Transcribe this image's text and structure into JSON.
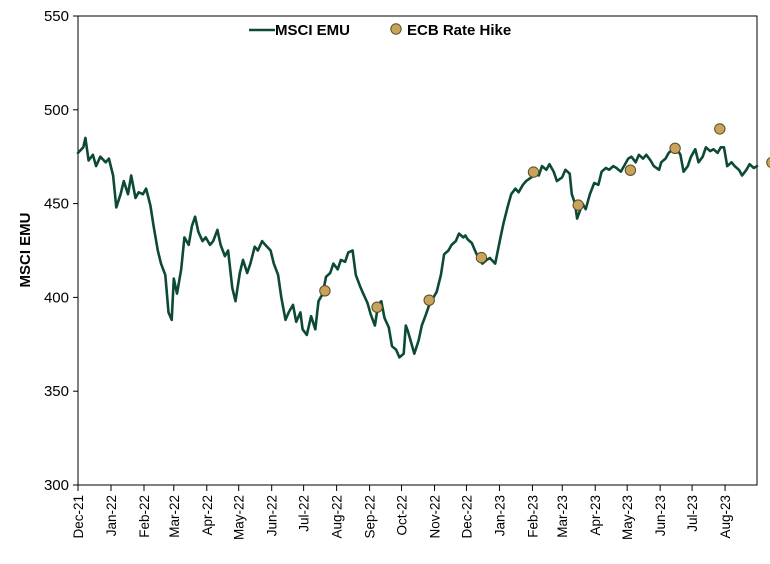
{
  "chart_data": {
    "type": "line",
    "ylabel": "MSCI EMU",
    "xlabel": "",
    "title": "",
    "ylim": [
      300,
      550
    ],
    "y_ticks": [
      "300",
      "350",
      "400",
      "450",
      "500",
      "550"
    ],
    "x_ticks": [
      "Dec-21",
      "Jan-22",
      "Feb-22",
      "Mar-22",
      "Apr-22",
      "May-22",
      "Jun-22",
      "Jul-22",
      "Aug-22",
      "Sep-22",
      "Oct-22",
      "Nov-22",
      "Dec-22",
      "Jan-23",
      "Feb-23",
      "Mar-23",
      "Apr-23",
      "May-23",
      "Jun-23",
      "Jul-23",
      "Aug-23"
    ],
    "x_range": [
      "2021-12-01",
      "2023-08-31"
    ],
    "legend_position": "top-center",
    "grid": false,
    "colors": {
      "series": "#0d4a35",
      "marker": "#c8a45a",
      "marker_edge": "#5a4a28"
    },
    "series": [
      {
        "name": "MSCI EMU",
        "points": [
          [
            "2021-12-01",
            477
          ],
          [
            "2021-12-06",
            480
          ],
          [
            "2021-12-08",
            485
          ],
          [
            "2021-12-11",
            473
          ],
          [
            "2021-12-15",
            476
          ],
          [
            "2021-12-18",
            470
          ],
          [
            "2021-12-22",
            475
          ],
          [
            "2021-12-27",
            472
          ],
          [
            "2021-12-30",
            474
          ],
          [
            "2022-01-03",
            465
          ],
          [
            "2022-01-06",
            448
          ],
          [
            "2022-01-10",
            455
          ],
          [
            "2022-01-13",
            462
          ],
          [
            "2022-01-17",
            455
          ],
          [
            "2022-01-20",
            465
          ],
          [
            "2022-01-24",
            453
          ],
          [
            "2022-01-27",
            456
          ],
          [
            "2022-01-31",
            455
          ],
          [
            "2022-02-03",
            458
          ],
          [
            "2022-02-07",
            449
          ],
          [
            "2022-02-10",
            438
          ],
          [
            "2022-02-14",
            425
          ],
          [
            "2022-02-17",
            418
          ],
          [
            "2022-02-21",
            412
          ],
          [
            "2022-02-24",
            392
          ],
          [
            "2022-02-27",
            388
          ],
          [
            "2022-03-01",
            410
          ],
          [
            "2022-03-04",
            402
          ],
          [
            "2022-03-08",
            415
          ],
          [
            "2022-03-11",
            432
          ],
          [
            "2022-03-15",
            428
          ],
          [
            "2022-03-18",
            438
          ],
          [
            "2022-03-21",
            443
          ],
          [
            "2022-03-24",
            435
          ],
          [
            "2022-03-28",
            430
          ],
          [
            "2022-03-31",
            432
          ],
          [
            "2022-04-04",
            428
          ],
          [
            "2022-04-07",
            430
          ],
          [
            "2022-04-11",
            436
          ],
          [
            "2022-04-14",
            428
          ],
          [
            "2022-04-18",
            422
          ],
          [
            "2022-04-21",
            425
          ],
          [
            "2022-04-25",
            405
          ],
          [
            "2022-04-28",
            398
          ],
          [
            "2022-05-02",
            413
          ],
          [
            "2022-05-05",
            420
          ],
          [
            "2022-05-09",
            413
          ],
          [
            "2022-05-12",
            418
          ],
          [
            "2022-05-16",
            427
          ],
          [
            "2022-05-19",
            425
          ],
          [
            "2022-05-23",
            430
          ],
          [
            "2022-05-26",
            428
          ],
          [
            "2022-05-31",
            425
          ],
          [
            "2022-06-03",
            418
          ],
          [
            "2022-06-07",
            412
          ],
          [
            "2022-06-10",
            400
          ],
          [
            "2022-06-14",
            388
          ],
          [
            "2022-06-17",
            392
          ],
          [
            "2022-06-21",
            396
          ],
          [
            "2022-06-24",
            387
          ],
          [
            "2022-06-28",
            392
          ],
          [
            "2022-06-30",
            383
          ],
          [
            "2022-07-04",
            380
          ],
          [
            "2022-07-08",
            390
          ],
          [
            "2022-07-12",
            383
          ],
          [
            "2022-07-15",
            398
          ],
          [
            "2022-07-19",
            402
          ],
          [
            "2022-07-22",
            411
          ],
          [
            "2022-07-26",
            413
          ],
          [
            "2022-07-29",
            418
          ],
          [
            "2022-08-02",
            415
          ],
          [
            "2022-08-05",
            420
          ],
          [
            "2022-08-09",
            419
          ],
          [
            "2022-08-12",
            424
          ],
          [
            "2022-08-16",
            425
          ],
          [
            "2022-08-19",
            412
          ],
          [
            "2022-08-23",
            406
          ],
          [
            "2022-08-26",
            402
          ],
          [
            "2022-08-30",
            397
          ],
          [
            "2022-09-02",
            391
          ],
          [
            "2022-09-06",
            385
          ],
          [
            "2022-09-09",
            396
          ],
          [
            "2022-09-12",
            398
          ],
          [
            "2022-09-15",
            389
          ],
          [
            "2022-09-19",
            384
          ],
          [
            "2022-09-22",
            374
          ],
          [
            "2022-09-26",
            372
          ],
          [
            "2022-09-29",
            368
          ],
          [
            "2022-10-03",
            370
          ],
          [
            "2022-10-05",
            385
          ],
          [
            "2022-10-07",
            382
          ],
          [
            "2022-10-10",
            376
          ],
          [
            "2022-10-13",
            370
          ],
          [
            "2022-10-17",
            377
          ],
          [
            "2022-10-20",
            385
          ],
          [
            "2022-10-24",
            391
          ],
          [
            "2022-10-27",
            396
          ],
          [
            "2022-10-31",
            400
          ],
          [
            "2022-11-03",
            403
          ],
          [
            "2022-11-07",
            412
          ],
          [
            "2022-11-10",
            423
          ],
          [
            "2022-11-14",
            425
          ],
          [
            "2022-11-17",
            428
          ],
          [
            "2022-11-21",
            430
          ],
          [
            "2022-11-24",
            434
          ],
          [
            "2022-11-28",
            432
          ],
          [
            "2022-11-30",
            433
          ],
          [
            "2022-12-02",
            431
          ],
          [
            "2022-12-06",
            429
          ],
          [
            "2022-12-09",
            425
          ],
          [
            "2022-12-13",
            420
          ],
          [
            "2022-12-16",
            418
          ],
          [
            "2022-12-20",
            420
          ],
          [
            "2022-12-23",
            421
          ],
          [
            "2022-12-28",
            418
          ],
          [
            "2023-01-02",
            432
          ],
          [
            "2023-01-05",
            440
          ],
          [
            "2023-01-09",
            449
          ],
          [
            "2023-01-12",
            455
          ],
          [
            "2023-01-16",
            458
          ],
          [
            "2023-01-19",
            456
          ],
          [
            "2023-01-23",
            460
          ],
          [
            "2023-01-26",
            462
          ],
          [
            "2023-01-31",
            464
          ],
          [
            "2023-02-03",
            466
          ],
          [
            "2023-02-07",
            465
          ],
          [
            "2023-02-10",
            470
          ],
          [
            "2023-02-14",
            468
          ],
          [
            "2023-02-17",
            471
          ],
          [
            "2023-02-21",
            467
          ],
          [
            "2023-02-24",
            462
          ],
          [
            "2023-03-01",
            464
          ],
          [
            "2023-03-04",
            468
          ],
          [
            "2023-03-08",
            466
          ],
          [
            "2023-03-10",
            455
          ],
          [
            "2023-03-13",
            450
          ],
          [
            "2023-03-15",
            442
          ],
          [
            "2023-03-20",
            450
          ],
          [
            "2023-03-23",
            447
          ],
          [
            "2023-03-27",
            455
          ],
          [
            "2023-03-31",
            461
          ],
          [
            "2023-04-04",
            460
          ],
          [
            "2023-04-07",
            467
          ],
          [
            "2023-04-11",
            469
          ],
          [
            "2023-04-14",
            468
          ],
          [
            "2023-04-18",
            470
          ],
          [
            "2023-04-21",
            469
          ],
          [
            "2023-04-25",
            467
          ],
          [
            "2023-04-28",
            470
          ],
          [
            "2023-05-02",
            474
          ],
          [
            "2023-05-05",
            475
          ],
          [
            "2023-05-09",
            472
          ],
          [
            "2023-05-12",
            476
          ],
          [
            "2023-05-16",
            474
          ],
          [
            "2023-05-19",
            476
          ],
          [
            "2023-05-23",
            473
          ],
          [
            "2023-05-26",
            470
          ],
          [
            "2023-05-31",
            468
          ],
          [
            "2023-06-02",
            472
          ],
          [
            "2023-06-06",
            474
          ],
          [
            "2023-06-09",
            477
          ],
          [
            "2023-06-13",
            479
          ],
          [
            "2023-06-16",
            480
          ],
          [
            "2023-06-20",
            476
          ],
          [
            "2023-06-23",
            467
          ],
          [
            "2023-06-27",
            470
          ],
          [
            "2023-06-30",
            475
          ],
          [
            "2023-07-04",
            479
          ],
          [
            "2023-07-07",
            472
          ],
          [
            "2023-07-11",
            475
          ],
          [
            "2023-07-14",
            480
          ],
          [
            "2023-07-18",
            478
          ],
          [
            "2023-07-21",
            479
          ],
          [
            "2023-07-25",
            477
          ],
          [
            "2023-07-28",
            480
          ],
          [
            "2023-07-31",
            480
          ],
          [
            "2023-08-03",
            470
          ],
          [
            "2023-08-07",
            472
          ],
          [
            "2023-08-10",
            470
          ],
          [
            "2023-08-14",
            468
          ],
          [
            "2023-08-17",
            465
          ],
          [
            "2023-08-21",
            468
          ],
          [
            "2023-08-24",
            471
          ],
          [
            "2023-08-28",
            469
          ],
          [
            "2023-08-31",
            470
          ]
        ]
      },
      {
        "name": "ECB Rate Hike",
        "points": [
          [
            "2022-07-21",
            403.5
          ],
          [
            "2022-09-08",
            394.8
          ],
          [
            "2022-10-27",
            398.5
          ],
          [
            "2022-12-15",
            421.2
          ],
          [
            "2023-02-02",
            466.8
          ],
          [
            "2023-03-16",
            449.2
          ],
          [
            "2023-05-04",
            467.8
          ],
          [
            "2023-06-15",
            479.5
          ],
          [
            "2023-07-27",
            489.8
          ],
          [
            "2023-09-14",
            471.9
          ]
        ]
      }
    ]
  }
}
